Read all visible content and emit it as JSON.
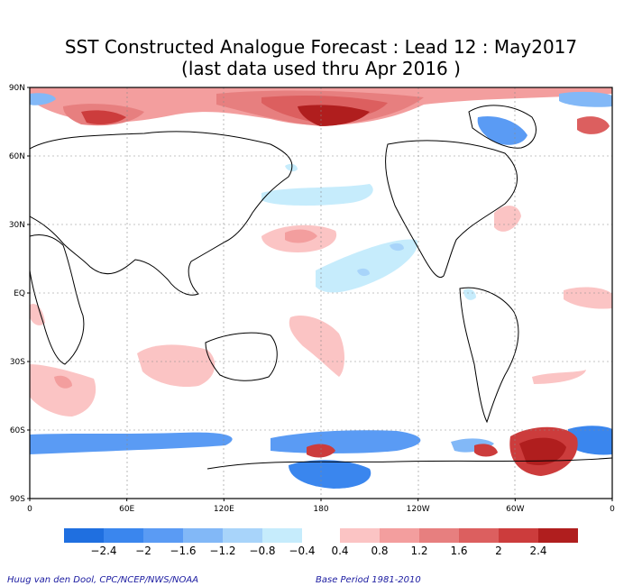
{
  "title_line1": "SST Constructed Analogue Forecast : Lead 12 : May2017",
  "title_line2": "(last data used thru Apr 2016 )",
  "lat_labels": [
    "90N",
    "60N",
    "30N",
    "EQ",
    "30S",
    "60S",
    "90S"
  ],
  "lat_values": [
    90,
    60,
    30,
    0,
    -30,
    -60,
    -90
  ],
  "lon_labels": [
    "0",
    "60E",
    "120E",
    "180",
    "120W",
    "60W",
    "0"
  ],
  "lon_values": [
    0,
    60,
    120,
    180,
    240,
    300,
    360
  ],
  "colorbar": {
    "negative_colors": [
      "#1f6fe0",
      "#3a86ee",
      "#5a9bf4",
      "#82b8f7",
      "#a8d4fa",
      "#c6ecfc"
    ],
    "positive_colors": [
      "#fbc4c4",
      "#f39e9e",
      "#e77f7f",
      "#dc5f5f",
      "#cc3c3c",
      "#b01e1e"
    ],
    "labels": [
      "−2.4",
      "−2",
      "−1.6",
      "−1.2",
      "−0.8",
      "−0.4",
      "0.4",
      "0.8",
      "1.2",
      "1.6",
      "2",
      "2.4"
    ]
  },
  "credit_left": "Huug van den Dool, CPC/NCEP/NWS/NOAA",
  "credit_right": "Base Period 1981-2010"
}
